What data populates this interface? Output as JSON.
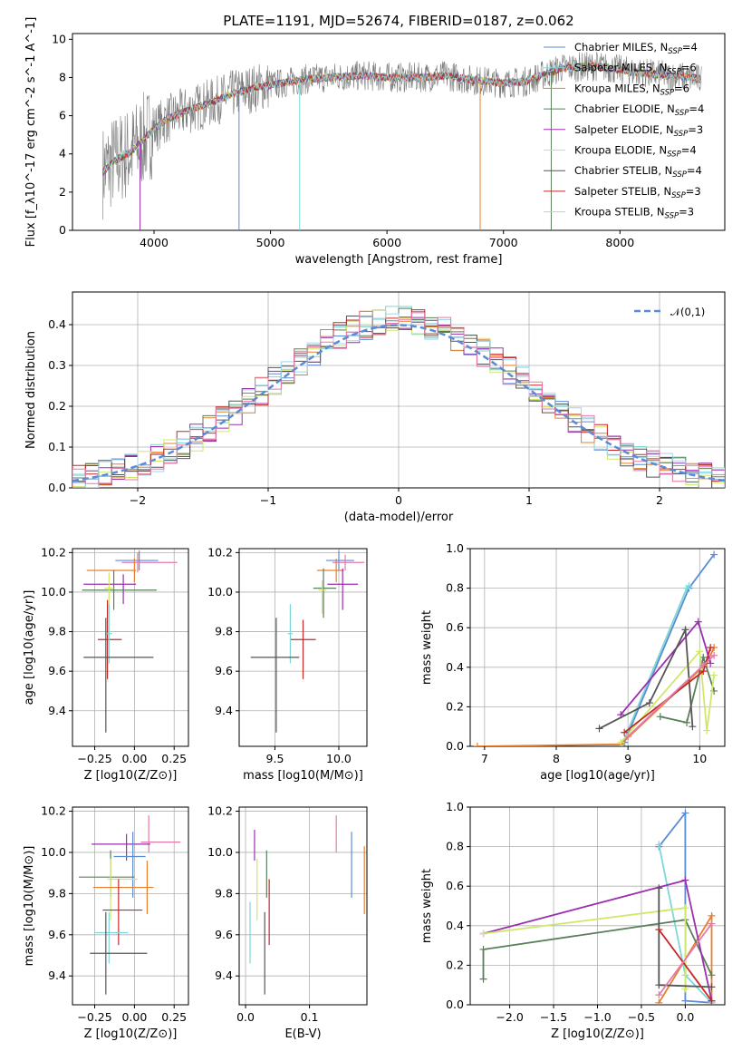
{
  "colors": {
    "Chabrier MILES": "#5b8bd6",
    "Salpeter MILES": "#7fd6d6",
    "Kroupa MILES": "#e67f2d",
    "Chabrier ELODIE": "#5a7f5a",
    "Salpeter ELODIE": "#9b2fae",
    "Kroupa ELODIE": "#cfe86a",
    "Chabrier STELIB": "#555555",
    "Salpeter STELIB": "#c62828",
    "Kroupa STELIB": "#9fd6ea",
    "Chabrier STELIB_alt": "#e57aa8"
  },
  "chart_data": [
    {
      "id": "spectrum",
      "type": "line",
      "title": "PLATE=1191, MJD=52674, FIBERID=0187, z=0.062",
      "xlabel": "wavelength [Angstrom, rest frame]",
      "ylabel": "Flux [f_λ10^-17 erg cm^-2 s^-1 A^-1]",
      "xlim": [
        3300,
        8900
      ],
      "ylim": [
        0,
        10.3
      ],
      "xticks": [
        "4000",
        "5000",
        "6000",
        "7000",
        "8000"
      ],
      "yticks": [
        "0",
        "2",
        "4",
        "6",
        "8",
        "10"
      ],
      "grid": false,
      "legend_position": "right",
      "legend": [
        {
          "label": "Chabrier MILES, N",
          "sub": "SSP",
          "suffix": "=4",
          "color": "#5b8bd6"
        },
        {
          "label": "Salpeter MILES, N",
          "sub": "SSP",
          "suffix": "=6",
          "color": "#7fd6d6"
        },
        {
          "label": "Kroupa MILES, N",
          "sub": "SSP",
          "suffix": "=6",
          "color": "#e67f2d"
        },
        {
          "label": "Chabrier ELODIE, N",
          "sub": "SSP",
          "suffix": "=4",
          "color": "#5a7f5a"
        },
        {
          "label": "Salpeter ELODIE, N",
          "sub": "SSP",
          "suffix": "=3",
          "color": "#9b2fae"
        },
        {
          "label": "Kroupa ELODIE, N",
          "sub": "SSP",
          "suffix": "=4",
          "color": "#cfe86a"
        },
        {
          "label": "Chabrier STELIB, N",
          "sub": "SSP",
          "suffix": "=4",
          "color": "#555555"
        },
        {
          "label": "Salpeter STELIB, N",
          "sub": "SSP",
          "suffix": "=3",
          "color": "#c62828"
        },
        {
          "label": "Kroupa STELIB, N",
          "sub": "SSP",
          "suffix": "=3",
          "color": "#9fd6ea"
        }
      ],
      "continuum": [
        [
          3550,
          3.0
        ],
        [
          3650,
          3.6
        ],
        [
          3800,
          4.1
        ],
        [
          3950,
          5.0
        ],
        [
          4100,
          5.8
        ],
        [
          4300,
          6.3
        ],
        [
          4500,
          6.7
        ],
        [
          4700,
          7.2
        ],
        [
          4900,
          7.5
        ],
        [
          5100,
          7.7
        ],
        [
          5300,
          7.9
        ],
        [
          5500,
          8.0
        ],
        [
          5800,
          8.1
        ],
        [
          6000,
          8.0
        ],
        [
          6300,
          8.0
        ],
        [
          6500,
          8.1
        ],
        [
          6700,
          7.9
        ],
        [
          7000,
          7.7
        ],
        [
          7200,
          7.8
        ],
        [
          7500,
          8.5
        ],
        [
          7800,
          8.6
        ],
        [
          8100,
          8.3
        ],
        [
          8400,
          8.1
        ],
        [
          8600,
          8.0
        ],
        [
          8700,
          7.9
        ]
      ],
      "dips": [
        [
          4730,
          0
        ],
        [
          5250,
          0
        ],
        [
          6800,
          0
        ],
        [
          7410,
          0
        ],
        [
          3880,
          0
        ]
      ]
    },
    {
      "id": "residuals",
      "type": "histogram",
      "xlabel": "(data-model)/error",
      "ylabel": "Normed distribution",
      "xlim": [
        -2.5,
        2.5
      ],
      "ylim": [
        0,
        0.48
      ],
      "xticks": [
        "−2",
        "−1",
        "0",
        "1",
        "2"
      ],
      "yticks": [
        "0.0",
        "0.1",
        "0.2",
        "0.3",
        "0.4"
      ],
      "grid": true,
      "legend": [
        {
          "label": "𝒩(0,1)",
          "color": "#5b8bd6",
          "style": "dashed"
        }
      ],
      "bin_width": 0.1
    },
    {
      "id": "age_vs_Z",
      "type": "errorbar",
      "xlabel": "Z [log10(Z/Z⊙)]",
      "ylabel": "age  [log10(age/yr)]",
      "xlim": [
        -0.39,
        0.34
      ],
      "ylim": [
        9.22,
        10.22
      ],
      "xticks": [
        "−0.25",
        "0.00",
        "0.25"
      ],
      "yticks": [
        "9.4",
        "9.6",
        "9.8",
        "10.0",
        "10.2"
      ],
      "points": [
        {
          "x": 0.03,
          "y": 10.16,
          "xerr": [
            0.15,
            0.12
          ],
          "yerr": [
            0.05,
            0.05
          ],
          "color": "#5b8bd6"
        },
        {
          "x": 0.02,
          "y": 10.15,
          "xerr": [
            0.1,
            0.25
          ],
          "yerr": [
            0.05,
            0.05
          ],
          "color": "#e57aa8"
        },
        {
          "x": 0.0,
          "y": 10.11,
          "xerr": [
            0.3,
            0.01
          ],
          "yerr": [
            0.06,
            0.06
          ],
          "color": "#e67f2d"
        },
        {
          "x": -0.07,
          "y": 10.04,
          "xerr": [
            0.25,
            0.08
          ],
          "yerr": [
            0.1,
            0.05
          ],
          "color": "#9b2fae"
        },
        {
          "x": -0.13,
          "y": 10.01,
          "xerr": [
            0.2,
            0.27
          ],
          "yerr": [
            0.1,
            0.1
          ],
          "color": "#5a7f5a"
        },
        {
          "x": -0.16,
          "y": 10.02,
          "xerr": [
            0.03,
            0.03
          ],
          "yerr": [
            0.15,
            0.08
          ],
          "color": "#cfe86a"
        },
        {
          "x": -0.17,
          "y": 9.76,
          "xerr": [
            0.06,
            0.09
          ],
          "yerr": [
            0.2,
            0.2
          ],
          "color": "#c62828"
        },
        {
          "x": -0.16,
          "y": 9.79,
          "xerr": [
            0.02,
            0.02
          ],
          "yerr": [
            0.15,
            0.15
          ],
          "color": "#7fd6d6"
        },
        {
          "x": -0.18,
          "y": 9.67,
          "xerr": [
            0.14,
            0.3
          ],
          "yerr": [
            0.38,
            0.2
          ],
          "color": "#555555"
        }
      ]
    },
    {
      "id": "age_vs_mass",
      "type": "errorbar",
      "xlabel": "mass [log10(M/M⊙)]",
      "ylabel": "",
      "xlim": [
        9.22,
        10.22
      ],
      "ylim": [
        9.22,
        10.22
      ],
      "xticks": [
        "9.5",
        "10.0"
      ],
      "yticks": [
        "9.4",
        "9.6",
        "9.8",
        "10.0",
        "10.2"
      ],
      "points": [
        {
          "x": 10.0,
          "y": 10.16,
          "xerr": [
            0.1,
            0.12
          ],
          "yerr": [
            0.05,
            0.05
          ],
          "color": "#5b8bd6"
        },
        {
          "x": 10.05,
          "y": 10.15,
          "xerr": [
            0.1,
            0.15
          ],
          "yerr": [
            0.04,
            0.04
          ],
          "color": "#e57aa8"
        },
        {
          "x": 9.98,
          "y": 10.11,
          "xerr": [
            0.15,
            0.06
          ],
          "yerr": [
            0.06,
            0.06
          ],
          "color": "#e67f2d"
        },
        {
          "x": 10.03,
          "y": 10.04,
          "xerr": [
            0.12,
            0.12
          ],
          "yerr": [
            0.13,
            0.08
          ],
          "color": "#9b2fae"
        },
        {
          "x": 9.88,
          "y": 10.02,
          "xerr": [
            0.08,
            0.1
          ],
          "yerr": [
            0.15,
            0.1
          ],
          "color": "#5a7f5a"
        },
        {
          "x": 9.87,
          "y": 10.01,
          "xerr": [
            0.03,
            0.03
          ],
          "yerr": [
            0.12,
            0.05
          ],
          "color": "#cfe86a"
        },
        {
          "x": 9.72,
          "y": 9.76,
          "xerr": [
            0.1,
            0.1
          ],
          "yerr": [
            0.2,
            0.1
          ],
          "color": "#c62828"
        },
        {
          "x": 9.62,
          "y": 9.79,
          "xerr": [
            0.02,
            0.02
          ],
          "yerr": [
            0.15,
            0.15
          ],
          "color": "#7fd6d6"
        },
        {
          "x": 9.51,
          "y": 9.67,
          "xerr": [
            0.2,
            0.18
          ],
          "yerr": [
            0.38,
            0.2
          ],
          "color": "#555555"
        }
      ]
    },
    {
      "id": "mass_weight_vs_age",
      "type": "line",
      "xlabel": "age  [log10(age/yr)]",
      "ylabel": "mass weight",
      "xlim": [
        6.8,
        10.35
      ],
      "ylim": [
        0,
        1.0
      ],
      "xticks": [
        "7",
        "8",
        "9",
        "10"
      ],
      "yticks": [
        "0.0",
        "0.2",
        "0.4",
        "0.6",
        "0.8",
        "1.0"
      ],
      "grid": true,
      "series": [
        {
          "color": "#5b8bd6",
          "x": [
            8.95,
            9.85,
            10.2
          ],
          "y": [
            0.02,
            0.8,
            0.97
          ]
        },
        {
          "color": "#7fd6d6",
          "x": [
            8.92,
            9.82,
            9.85
          ],
          "y": [
            0.01,
            0.8,
            0.81
          ]
        },
        {
          "color": "#e67f2d",
          "x": [
            6.9,
            8.9,
            10.1,
            10.2
          ],
          "y": [
            0.0,
            0.01,
            0.42,
            0.5
          ]
        },
        {
          "color": "#5a7f5a",
          "x": [
            9.45,
            9.82,
            10.05,
            10.2
          ],
          "y": [
            0.15,
            0.12,
            0.45,
            0.28
          ]
        },
        {
          "color": "#9b2fae",
          "x": [
            8.9,
            9.98,
            10.15
          ],
          "y": [
            0.16,
            0.63,
            0.42
          ]
        },
        {
          "color": "#cfe86a",
          "x": [
            8.9,
            10.0,
            10.1,
            10.2
          ],
          "y": [
            0.02,
            0.48,
            0.08,
            0.36
          ]
        },
        {
          "color": "#555555",
          "x": [
            8.6,
            9.3,
            9.8,
            9.9
          ],
          "y": [
            0.09,
            0.22,
            0.59,
            0.1
          ]
        },
        {
          "color": "#c62828",
          "x": [
            8.95,
            10.05,
            10.15
          ],
          "y": [
            0.07,
            0.38,
            0.5
          ]
        },
        {
          "color": "#e57aa8",
          "x": [
            9.0,
            10.05,
            10.2
          ],
          "y": [
            0.05,
            0.41,
            0.46
          ]
        }
      ]
    },
    {
      "id": "mass_vs_Z",
      "type": "errorbar",
      "xlabel": "Z [log10(Z/Z⊙)]",
      "ylabel": "mass [log10(M/M⊙)]",
      "xlim": [
        -0.39,
        0.34
      ],
      "ylim": [
        9.26,
        10.22
      ],
      "xticks": [
        "−0.25",
        "0.00",
        "0.25"
      ],
      "yticks": [
        "9.4",
        "9.6",
        "9.8",
        "10.0",
        "10.2"
      ],
      "points": [
        {
          "x": 0.09,
          "y": 10.05,
          "xerr": [
            0.05,
            0.2
          ],
          "yerr": [
            0.05,
            0.13
          ],
          "color": "#e57aa8"
        },
        {
          "x": -0.05,
          "y": 10.04,
          "xerr": [
            0.22,
            0.15
          ],
          "yerr": [
            0.08,
            0.05
          ],
          "color": "#9b2fae"
        },
        {
          "x": -0.01,
          "y": 9.98,
          "xerr": [
            0.12,
            0.08
          ],
          "yerr": [
            0.2,
            0.12
          ],
          "color": "#5b8bd6"
        },
        {
          "x": -0.15,
          "y": 9.88,
          "xerr": [
            0.2,
            0.15
          ],
          "yerr": [
            0.1,
            0.13
          ],
          "color": "#5a7f5a"
        },
        {
          "x": -0.15,
          "y": 9.87,
          "xerr": [
            0.02,
            0.17
          ],
          "yerr": [
            0.2,
            0.1
          ],
          "color": "#cfe86a"
        },
        {
          "x": 0.08,
          "y": 9.83,
          "xerr": [
            0.34,
            0.04
          ],
          "yerr": [
            0.13,
            0.13
          ],
          "color": "#e67f2d"
        },
        {
          "x": -0.1,
          "y": 9.72,
          "xerr": [
            0.1,
            0.15
          ],
          "yerr": [
            0.17,
            0.15
          ],
          "color": "#c62828"
        },
        {
          "x": -0.16,
          "y": 9.61,
          "xerr": [
            0.09,
            0.12
          ],
          "yerr": [
            0.15,
            0.1
          ],
          "color": "#7fd6d6"
        },
        {
          "x": -0.18,
          "y": 9.51,
          "xerr": [
            0.1,
            0.26
          ],
          "yerr": [
            0.2,
            0.2
          ],
          "color": "#555555"
        }
      ]
    },
    {
      "id": "mass_vs_EBV",
      "type": "errorbar",
      "xlabel": "E(B-V)",
      "ylabel": "",
      "xlim": [
        -0.01,
        0.19
      ],
      "ylim": [
        9.26,
        10.22
      ],
      "xticks": [
        "0.0",
        "0.1"
      ],
      "yticks": [
        "9.4",
        "9.6",
        "9.8",
        "10.0",
        "10.2"
      ],
      "points": [
        {
          "x": 0.142,
          "y": 10.05,
          "xerr": [
            0,
            0
          ],
          "yerr": [
            0.05,
            0.13
          ],
          "color": "#e57aa8"
        },
        {
          "x": 0.014,
          "y": 10.04,
          "xerr": [
            0,
            0
          ],
          "yerr": [
            0.08,
            0.07
          ],
          "color": "#9b2fae"
        },
        {
          "x": 0.166,
          "y": 9.98,
          "xerr": [
            0,
            0
          ],
          "yerr": [
            0.2,
            0.12
          ],
          "color": "#5b8bd6"
        },
        {
          "x": 0.033,
          "y": 9.88,
          "xerr": [
            0,
            0
          ],
          "yerr": [
            0.1,
            0.13
          ],
          "color": "#5a7f5a"
        },
        {
          "x": 0.018,
          "y": 9.87,
          "xerr": [
            0,
            0
          ],
          "yerr": [
            0.2,
            0.1
          ],
          "color": "#cfe86a"
        },
        {
          "x": 0.186,
          "y": 9.83,
          "xerr": [
            0,
            0
          ],
          "yerr": [
            0.13,
            0.2
          ],
          "color": "#e67f2d"
        },
        {
          "x": 0.037,
          "y": 9.72,
          "xerr": [
            0,
            0
          ],
          "yerr": [
            0.17,
            0.15
          ],
          "color": "#c62828"
        },
        {
          "x": 0.007,
          "y": 9.61,
          "xerr": [
            0,
            0
          ],
          "yerr": [
            0.15,
            0.15
          ],
          "color": "#7fd6d6"
        },
        {
          "x": 0.03,
          "y": 9.51,
          "xerr": [
            0,
            0
          ],
          "yerr": [
            0.2,
            0.2
          ],
          "color": "#555555"
        }
      ]
    },
    {
      "id": "mass_weight_vs_Z",
      "type": "line",
      "xlabel": "Z [log10(Z/Z⊙)]",
      "ylabel": "mass weight",
      "xlim": [
        -2.45,
        0.45
      ],
      "ylim": [
        0,
        1.0
      ],
      "xticks": [
        "−2.0",
        "−1.5",
        "−1.0",
        "−0.5",
        "0.0"
      ],
      "yticks": [
        "0.0",
        "0.2",
        "0.4",
        "0.6",
        "0.8",
        "1.0"
      ],
      "grid": true,
      "series": [
        {
          "color": "#5b8bd6",
          "x": [
            -0.3,
            0.0,
            0.0,
            0.3
          ],
          "y": [
            0.8,
            0.97,
            0.02,
            0.01
          ]
        },
        {
          "color": "#7fd6d6",
          "x": [
            -0.3,
            0.0,
            0.3
          ],
          "y": [
            0.81,
            0.15,
            0.01
          ]
        },
        {
          "color": "#e67f2d",
          "x": [
            -0.3,
            0.3,
            0.3
          ],
          "y": [
            0.01,
            0.45,
            0.02
          ]
        },
        {
          "color": "#5a7f5a",
          "x": [
            -2.3,
            -2.3,
            0.0,
            0.3
          ],
          "y": [
            0.13,
            0.28,
            0.43,
            0.15
          ]
        },
        {
          "color": "#9b2fae",
          "x": [
            -2.3,
            0.0,
            0.3
          ],
          "y": [
            0.36,
            0.63,
            0.02
          ]
        },
        {
          "color": "#cfe86a",
          "x": [
            -2.3,
            0.0,
            0.0
          ],
          "y": [
            0.36,
            0.49,
            0.08
          ]
        },
        {
          "color": "#555555",
          "x": [
            -0.3,
            -0.3,
            0.3
          ],
          "y": [
            0.59,
            0.1,
            0.09
          ]
        },
        {
          "color": "#c62828",
          "x": [
            -0.3,
            0.3
          ],
          "y": [
            0.38,
            0.02
          ]
        },
        {
          "color": "#e57aa8",
          "x": [
            -0.3,
            0.3
          ],
          "y": [
            0.05,
            0.41
          ]
        }
      ]
    }
  ]
}
